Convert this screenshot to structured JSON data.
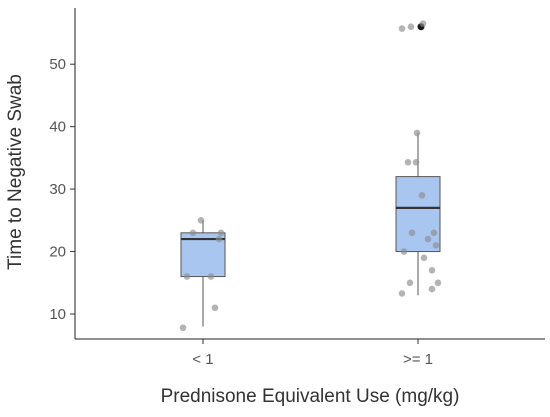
{
  "chart_data": {
    "type": "boxplot",
    "xlabel": "Prednisone Equivalent Use (mg/kg)",
    "ylabel": "Time to Negative Swab",
    "ylim": [
      6,
      59
    ],
    "yticks": [
      10,
      20,
      30,
      40,
      50
    ],
    "categories": [
      "< 1",
      ">= 1"
    ],
    "grid": false,
    "legend": "none",
    "colors": {
      "box_fill": "#a9c6f1",
      "point": "#8c8c8c",
      "outlier": "#1a1a1a",
      "axis": "#222222"
    },
    "boxes": [
      {
        "category": "< 1",
        "min": 8,
        "q1": 16,
        "median": 22,
        "q3": 23,
        "max": 25,
        "outliers": []
      },
      {
        "category": ">= 1",
        "min": 13,
        "q1": 20,
        "median": 27,
        "q3": 32,
        "max": 39,
        "outliers": [
          56
        ]
      }
    ],
    "points": [
      {
        "category": "< 1",
        "values": [
          7.8,
          11,
          16,
          16,
          22,
          23,
          23,
          25
        ]
      },
      {
        "category": ">= 1",
        "values": [
          13.3,
          14,
          15,
          15,
          17,
          19,
          20,
          21,
          22,
          23,
          23,
          29,
          34.3,
          34.3,
          39,
          55.7,
          56,
          56.5
        ]
      }
    ]
  }
}
